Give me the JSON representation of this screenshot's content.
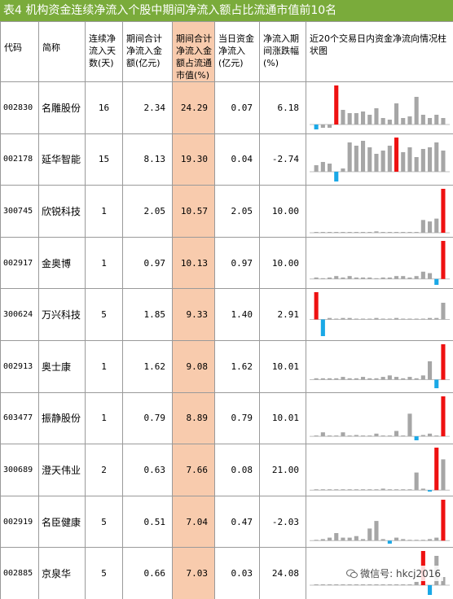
{
  "title": "表4  机构资金连续净流入个股中期间净流入额占比流通市值前10名",
  "headers": {
    "code": "代码",
    "name": "简称",
    "days": "连续净流入天数(天)",
    "total": "期间合计净流入金额(亿元)",
    "share": "期间合计净流入金额占流通市值(%)",
    "today": "当日资金净流入(亿元)",
    "change": "净流入期间涨跌幅(%)",
    "chart": "近20个交易日内资金净流向情况柱状图"
  },
  "rows": [
    {
      "code": "002830",
      "name": "名雕股份",
      "days": "16",
      "total": "2.34",
      "share": "24.29",
      "today": "0.07",
      "change": "6.18",
      "bars": [
        -0.3,
        -0.2,
        -0.2,
        2.4,
        0.9,
        0.7,
        0.7,
        0.8,
        0.6,
        1.0,
        0.4,
        0.3,
        1.3,
        0.4,
        0.5,
        1.7,
        0.6,
        0.4,
        0.6,
        0.4
      ]
    },
    {
      "code": "002178",
      "name": "延华智能",
      "days": "15",
      "total": "8.13",
      "share": "19.30",
      "today": "0.04",
      "change": "-2.74",
      "bars": [
        0.4,
        0.6,
        0.5,
        -0.6,
        0.2,
        1.8,
        1.6,
        1.9,
        1.5,
        1.1,
        1.3,
        1.6,
        2.1,
        1.2,
        1.5,
        0.9,
        1.4,
        1.5,
        1.8,
        1.3
      ]
    },
    {
      "code": "300745",
      "name": "欣锐科技",
      "days": "1",
      "total": "2.05",
      "share": "10.57",
      "today": "2.05",
      "change": "10.00",
      "bars": [
        0,
        0,
        0,
        0,
        0,
        0,
        0,
        0,
        0,
        0.1,
        0,
        0,
        0,
        0,
        0,
        0,
        0.9,
        0.8,
        1.0,
        3.1
      ]
    },
    {
      "code": "002917",
      "name": "金奥博",
      "days": "1",
      "total": "0.97",
      "share": "10.13",
      "today": "0.97",
      "change": "10.00",
      "bars": [
        0.1,
        0,
        0.1,
        0.2,
        0.1,
        0.2,
        0.1,
        0.1,
        0.1,
        0,
        0.1,
        0.1,
        0.2,
        0.2,
        0.1,
        0.2,
        0.5,
        0.4,
        -0.4,
        2.6
      ]
    },
    {
      "code": "300624",
      "name": "万兴科技",
      "days": "5",
      "total": "1.85",
      "share": "9.33",
      "today": "1.40",
      "change": "2.91",
      "bars": [
        1.8,
        -1.1,
        0.1,
        0,
        0.1,
        0.1,
        0,
        0,
        0,
        0.1,
        0,
        0,
        0.1,
        0,
        0,
        0,
        0,
        0.1,
        0.1,
        1.1
      ]
    },
    {
      "code": "002913",
      "name": "奥士康",
      "days": "1",
      "total": "1.62",
      "share": "9.08",
      "today": "1.62",
      "change": "10.01",
      "bars": [
        0.1,
        0.1,
        0.1,
        0.1,
        0.2,
        0.1,
        0.1,
        0.2,
        0.1,
        0.1,
        0.2,
        0.3,
        0.2,
        0.1,
        0.2,
        0.1,
        0.3,
        1.3,
        -0.6,
        2.5
      ]
    },
    {
      "code": "603477",
      "name": "振静股份",
      "days": "1",
      "total": "0.79",
      "share": "8.89",
      "today": "0.79",
      "change": "10.01",
      "bars": [
        0,
        0.3,
        0,
        0,
        0.3,
        0,
        0.1,
        0,
        0,
        0.2,
        0,
        0,
        0.4,
        0,
        1.7,
        -0.3,
        0.1,
        0.2,
        0,
        3.0
      ]
    },
    {
      "code": "300689",
      "name": "澄天伟业",
      "days": "2",
      "total": "0.63",
      "share": "7.66",
      "today": "0.08",
      "change": "21.00",
      "bars": [
        0,
        0,
        0,
        0,
        0,
        0,
        0,
        0,
        0,
        0,
        0.1,
        0,
        0,
        0,
        0,
        1.2,
        0.1,
        -0.1,
        2.9,
        2.1
      ]
    },
    {
      "code": "002919",
      "name": "名臣健康",
      "days": "5",
      "total": "0.51",
      "share": "7.04",
      "today": "0.47",
      "change": "-2.03",
      "bars": [
        0,
        0.1,
        0.2,
        0.5,
        0.2,
        0.2,
        0.3,
        0.1,
        0.8,
        1.3,
        0.1,
        -0.2,
        0.2,
        0.1,
        0,
        0,
        0,
        0.1,
        0.2,
        2.7
      ]
    },
    {
      "code": "002885",
      "name": "京泉华",
      "days": "5",
      "total": "0.66",
      "share": "7.03",
      "today": "0.03",
      "change": "24.08",
      "bars": [
        0,
        0,
        0,
        0,
        0,
        0,
        0,
        0,
        0,
        0,
        0,
        0,
        0,
        0,
        0,
        0.2,
        2.1,
        -0.6,
        1.8,
        0.5
      ]
    }
  ],
  "colors": {
    "title_bg": "#7aab3b",
    "share_bg": "#f8cbad",
    "bar_default": "#a6a6a6",
    "bar_max": "#ee1111",
    "bar_min": "#1aa8e6"
  },
  "watermark": "微信号: hkcj2016"
}
